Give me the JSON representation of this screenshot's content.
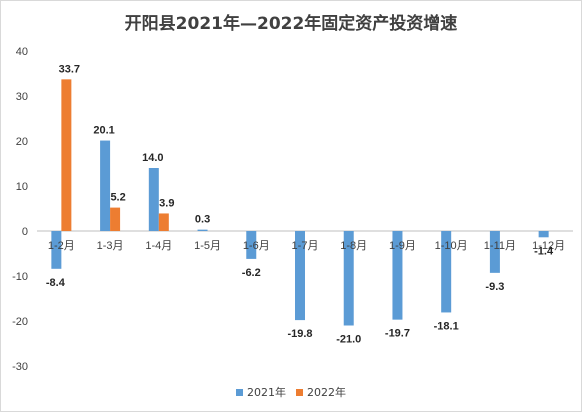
{
  "chart_data": {
    "type": "bar",
    "title": "开阳县2021年—2022年固定资产投资增速",
    "categories": [
      "1-2月",
      "1-3月",
      "1-4月",
      "1-5月",
      "1-6月",
      "1-7月",
      "1-8月",
      "1-9月",
      "1-10月",
      "1-11月",
      "1-12月"
    ],
    "series": [
      {
        "name": "2021年",
        "color": "#5b9bd5",
        "values": [
          -8.4,
          20.1,
          14.0,
          0.3,
          -6.2,
          -19.8,
          -21.0,
          -19.7,
          -18.1,
          -9.3,
          -1.4
        ]
      },
      {
        "name": "2022年",
        "color": "#ed7d31",
        "values": [
          33.7,
          5.2,
          3.9,
          null,
          null,
          null,
          null,
          null,
          null,
          null,
          null
        ]
      }
    ],
    "ylim": [
      -30,
      40
    ],
    "yticks": [
      -30,
      -20,
      -10,
      0,
      10,
      20,
      30,
      40
    ],
    "grid": false,
    "legend_position": "bottom"
  }
}
